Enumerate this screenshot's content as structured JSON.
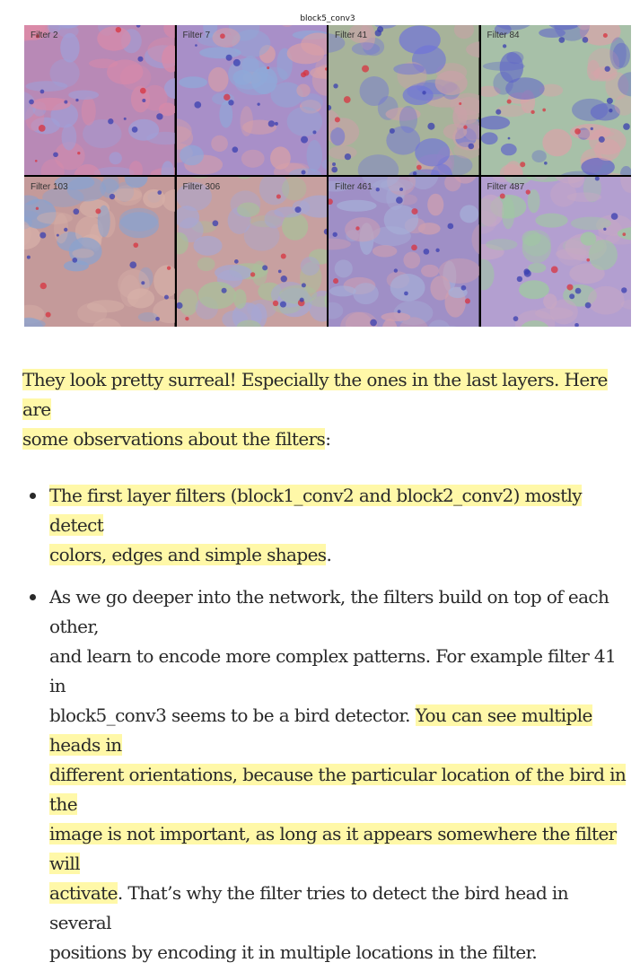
{
  "figure": {
    "title": "block5_conv3",
    "filters": [
      {
        "label": "Filter 2",
        "colors": [
          "#b889b6",
          "#d98aa8",
          "#9fa0d8"
        ]
      },
      {
        "label": "Filter 7",
        "colors": [
          "#a88fc8",
          "#d9a0a6",
          "#8ea9d9"
        ]
      },
      {
        "label": "Filter 41",
        "colors": [
          "#a7b39a",
          "#c9a1a8",
          "#6f74d8"
        ]
      },
      {
        "label": "Filter 84",
        "colors": [
          "#a7c0a8",
          "#d8a3a9",
          "#5f63c9"
        ]
      },
      {
        "label": "Filter 103",
        "colors": [
          "#c49a9a",
          "#8aa2cf",
          "#d7b0a8"
        ]
      },
      {
        "label": "Filter 306",
        "colors": [
          "#c7a0a0",
          "#a6a7d4",
          "#a8c09a"
        ]
      },
      {
        "label": "Filter 461",
        "colors": [
          "#9f8fc6",
          "#cf9fb0",
          "#a6b0d8"
        ]
      },
      {
        "label": "Filter 487",
        "colors": [
          "#b39fd0",
          "#c8a8c4",
          "#9fc9a0"
        ]
      }
    ]
  },
  "article": {
    "intro_hl_1": "They look pretty surreal! Especially the ones in the last layers. Here are",
    "intro_hl_2": "some observations about the filters",
    "intro_tail": ":",
    "bullet1_hl_1": "The first layer filters (block1_conv2 and block2_conv2) mostly detect",
    "bullet1_hl_2": "colors, edges and simple shapes",
    "bullet1_tail": ".",
    "bullet2_line1": "As we go deeper into the network, the filters build on top of each other,",
    "bullet2_line2": "and learn to encode more complex patterns. For example filter 41 in",
    "bullet2_line3_plain": "block5_conv3 seems to be a bird detector. ",
    "bullet2_hl_1": "You can see multiple heads in",
    "bullet2_hl_2": "different orientations, because the particular location of the bird in the",
    "bullet2_hl_3": "image is not important, as long as it appears somewhere the filter will",
    "bullet2_hl_4": "activate",
    "bullet2_line7_tail": ". That’s why the filter tries to detect the bird head in several",
    "bullet2_line8": "positions by encoding it in multiple locations in the filter."
  },
  "colors": {
    "highlight": "#fff8a8",
    "text": "#292929"
  }
}
